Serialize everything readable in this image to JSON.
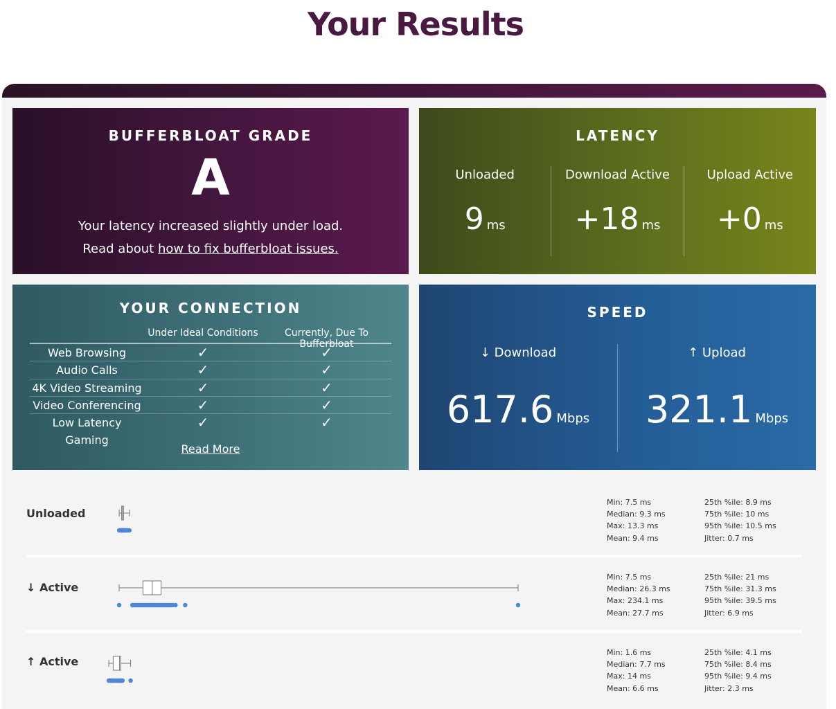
{
  "page": {
    "title": "Your Results"
  },
  "grade": {
    "title": "Bufferbloat Grade",
    "letter": "A",
    "line1": "Your latency increased slightly under load.",
    "line2_prefix": "Read about ",
    "line2_link": "how to fix bufferbloat issues."
  },
  "latency": {
    "title": "Latency",
    "items": [
      {
        "label": "Unloaded",
        "value": "9",
        "unit": "ms"
      },
      {
        "label": "Download Active",
        "value": "+18",
        "unit": "ms"
      },
      {
        "label": "Upload Active",
        "value": "+0",
        "unit": "ms"
      }
    ]
  },
  "connection": {
    "title": "Your Connection",
    "col_ideal": "Under Ideal Conditions",
    "col_current": "Currently, Due To Bufferbloat",
    "rows": [
      {
        "name": "Web Browsing",
        "ideal": "✓",
        "current": "✓"
      },
      {
        "name": "Audio Calls",
        "ideal": "✓",
        "current": "✓"
      },
      {
        "name": "4K Video Streaming",
        "ideal": "✓",
        "current": "✓"
      },
      {
        "name": "Video Conferencing",
        "ideal": "✓",
        "current": "✓"
      },
      {
        "name": "Low Latency Gaming",
        "ideal": "✓",
        "current": "✓"
      }
    ],
    "read_more": "Read More"
  },
  "speed": {
    "title": "Speed",
    "download": {
      "label": "↓ Download",
      "value": "617.6",
      "unit": "Mbps"
    },
    "upload": {
      "label": "↑ Upload",
      "value": "321.1",
      "unit": "Mbps"
    }
  },
  "details": {
    "scale_max_ms": 234.1,
    "rows": [
      {
        "label": "Unloaded",
        "box": {
          "min": 7.5,
          "q1": 8.9,
          "median": 9.3,
          "q3": 10,
          "max": 13.3
        },
        "points": [
          7.5,
          8.0,
          8.5,
          8.9,
          9.0,
          9.3,
          9.6,
          10.0,
          10.3,
          10.5,
          11.0,
          11.5,
          12.0,
          12.5,
          13.3
        ],
        "stats_left": [
          "Min: 7.5 ms",
          "Median: 9.3 ms",
          "Max: 13.3 ms",
          "Mean: 9.4 ms"
        ],
        "stats_right": [
          "25th %ile: 8.9 ms",
          "75th %ile: 10 ms",
          "95th %ile: 10.5 ms",
          "Jitter: 0.7 ms"
        ]
      },
      {
        "label": "↓ Active",
        "box": {
          "min": 7.5,
          "q1": 21,
          "median": 26.3,
          "q3": 31.3,
          "max": 234.1
        },
        "points": [
          7.5,
          15,
          16,
          17,
          18,
          19,
          20,
          21,
          22,
          23,
          24,
          25,
          26,
          26.3,
          27,
          28,
          29,
          30,
          31,
          32,
          33,
          34,
          35,
          36,
          37,
          38,
          39.5,
          45,
          234.1
        ],
        "stats_left": [
          "Min: 7.5 ms",
          "Median: 26.3 ms",
          "Max: 234.1 ms",
          "Mean: 27.7 ms"
        ],
        "stats_right": [
          "25th %ile: 21 ms",
          "75th %ile: 31.3 ms",
          "95th %ile: 39.5 ms",
          "Jitter: 6.9 ms"
        ]
      },
      {
        "label": "↑ Active",
        "box": {
          "min": 1.6,
          "q1": 4.1,
          "median": 7.7,
          "q3": 8.4,
          "max": 14
        },
        "points": [
          1.6,
          2.0,
          2.5,
          3.0,
          3.5,
          4.1,
          5.0,
          6.0,
          7.0,
          7.7,
          8.0,
          8.4,
          9.0,
          9.4,
          14
        ],
        "stats_left": [
          "Min: 1.6 ms",
          "Median: 7.7 ms",
          "Max: 14 ms",
          "Mean: 6.6 ms"
        ],
        "stats_right": [
          "25th %ile: 4.1 ms",
          "75th %ile: 8.4 ms",
          "95th %ile: 9.4 ms",
          "Jitter: 2.3 ms"
        ]
      }
    ]
  },
  "colors": {
    "title": "#4a1942",
    "point": "#4f86d6",
    "box_stroke": "#777777"
  }
}
